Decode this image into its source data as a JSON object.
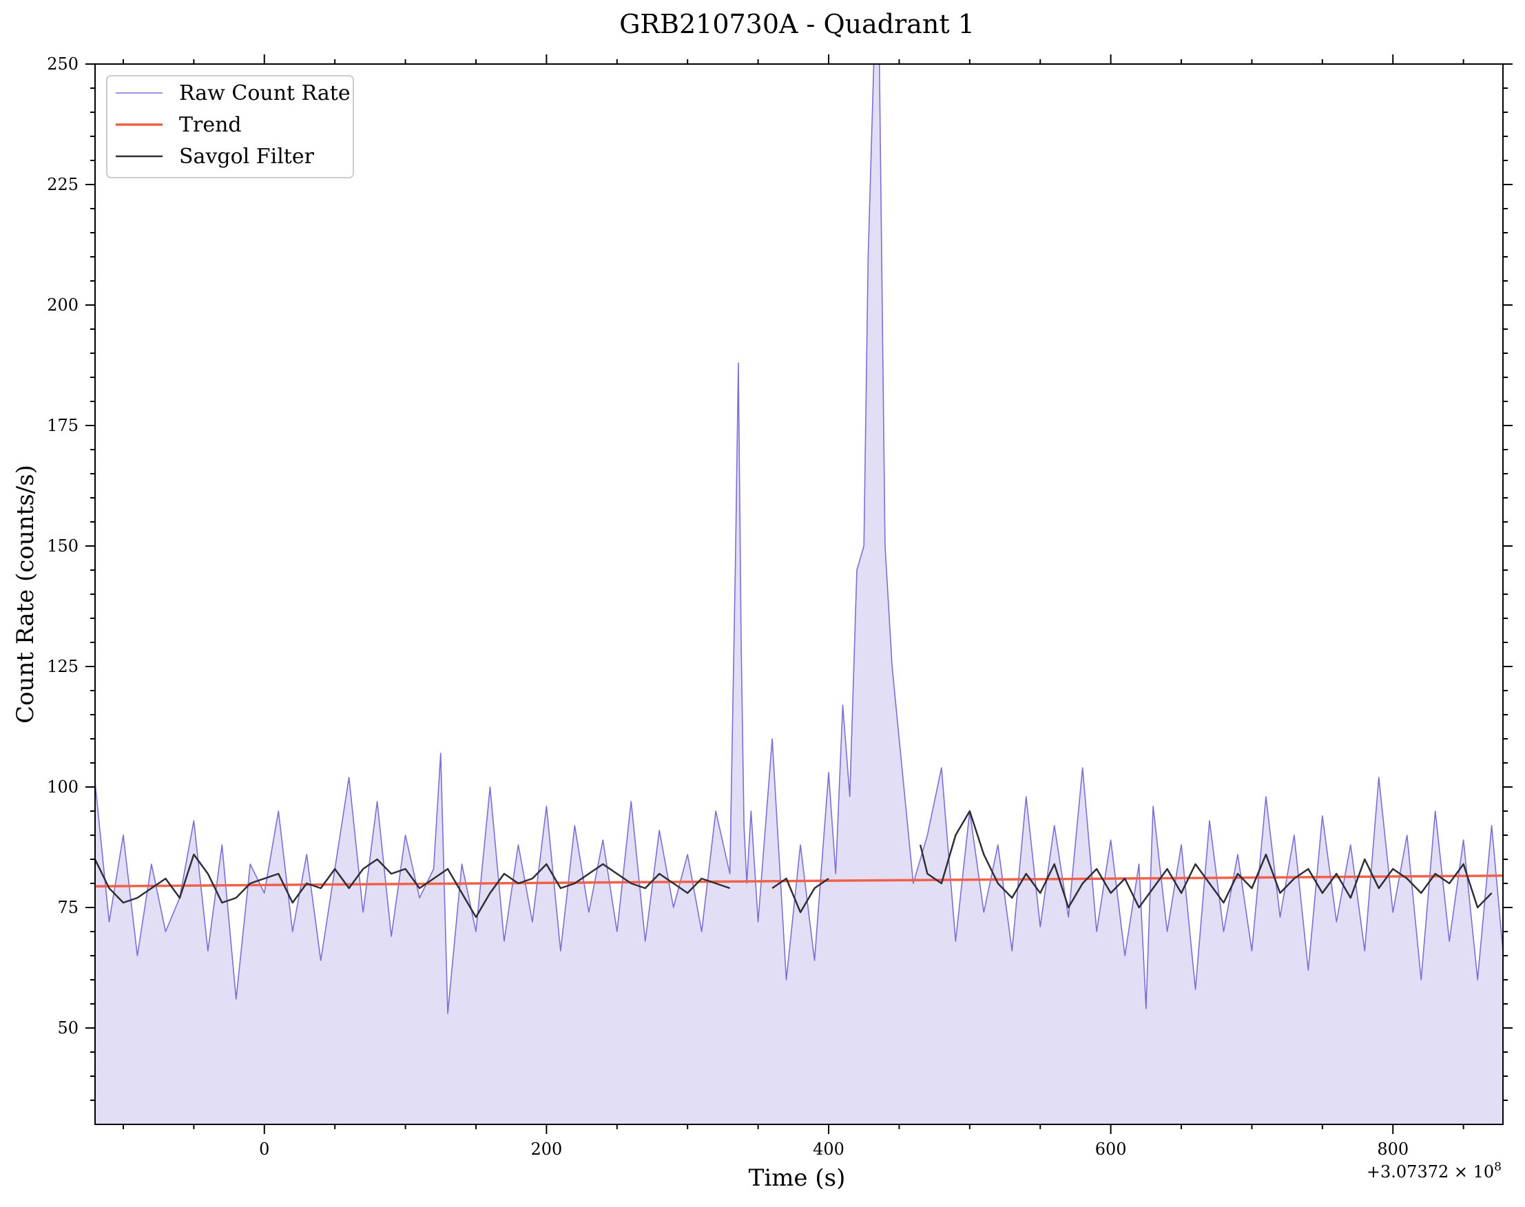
{
  "chart_data": {
    "type": "line",
    "title": "GRB210730A - Quadrant 1",
    "xlabel": "Time (s)",
    "ylabel": "Count Rate (counts/s)",
    "x_offset_label": "+3.07372 × 10",
    "x_offset_exponent": "8",
    "xlim": [
      -120,
      878
    ],
    "ylim": [
      30,
      250
    ],
    "x_ticks": [
      0,
      200,
      400,
      600,
      800
    ],
    "x_tick_labels": [
      "0",
      "200",
      "400",
      "600",
      "800"
    ],
    "y_ticks": [
      50,
      75,
      100,
      125,
      150,
      175,
      200,
      225,
      250
    ],
    "y_tick_labels": [
      "50",
      "75",
      "100",
      "125",
      "150",
      "175",
      "200",
      "225",
      "250"
    ],
    "grid": false,
    "legend_position": "top-left",
    "colors": {
      "raw": "#7b6fd6",
      "raw_fill": "#e1def5",
      "trend": "#f0604a",
      "savgol": "#2e2e36"
    },
    "series": [
      {
        "name": "Raw Count Rate",
        "style": "thin line with filled area",
        "x": [
          -120,
          -110,
          -100,
          -90,
          -80,
          -70,
          -60,
          -50,
          -40,
          -30,
          -20,
          -10,
          0,
          10,
          20,
          30,
          40,
          50,
          60,
          70,
          80,
          90,
          100,
          110,
          120,
          125,
          130,
          140,
          150,
          160,
          170,
          180,
          190,
          200,
          210,
          220,
          230,
          240,
          250,
          260,
          270,
          280,
          290,
          300,
          310,
          320,
          330,
          334,
          336,
          338,
          340,
          342,
          345,
          350,
          360,
          370,
          380,
          390,
          400,
          405,
          410,
          415,
          420,
          425,
          428,
          432,
          436,
          440,
          445,
          450,
          460,
          470,
          480,
          490,
          500,
          510,
          520,
          530,
          540,
          550,
          560,
          570,
          580,
          590,
          600,
          610,
          620,
          625,
          630,
          640,
          650,
          660,
          670,
          680,
          690,
          700,
          710,
          720,
          730,
          740,
          750,
          760,
          770,
          780,
          790,
          800,
          810,
          820,
          830,
          840,
          850,
          860,
          870,
          878
        ],
        "y": [
          101,
          72,
          90,
          65,
          84,
          70,
          77,
          93,
          66,
          88,
          56,
          84,
          78,
          95,
          70,
          86,
          64,
          83,
          102,
          74,
          97,
          69,
          90,
          77,
          83,
          107,
          53,
          84,
          70,
          100,
          68,
          88,
          72,
          96,
          66,
          92,
          74,
          89,
          70,
          97,
          68,
          91,
          75,
          86,
          70,
          95,
          82,
          148,
          188,
          130,
          92,
          80,
          95,
          72,
          110,
          60,
          88,
          64,
          103,
          82,
          117,
          98,
          145,
          150,
          210,
          250,
          250,
          150,
          125,
          110,
          80,
          90,
          104,
          68,
          95,
          74,
          88,
          66,
          98,
          71,
          92,
          73,
          104,
          70,
          89,
          65,
          84,
          54,
          96,
          70,
          88,
          58,
          93,
          70,
          86,
          66,
          98,
          73,
          90,
          62,
          94,
          72,
          88,
          66,
          102,
          74,
          90,
          60,
          95,
          68,
          89,
          60,
          92,
          66
        ]
      },
      {
        "name": "Trend",
        "x": [
          -120,
          878
        ],
        "y": [
          79.4,
          81.6
        ]
      },
      {
        "name": "Savgol Filter",
        "x": [
          -120,
          -110,
          -100,
          -90,
          -80,
          -70,
          -60,
          -50,
          -40,
          -30,
          -20,
          -10,
          0,
          10,
          20,
          30,
          40,
          50,
          60,
          70,
          80,
          90,
          100,
          110,
          120,
          130,
          140,
          150,
          160,
          170,
          180,
          190,
          200,
          210,
          220,
          230,
          240,
          250,
          260,
          270,
          280,
          290,
          300,
          310,
          320,
          330,
          345,
          350,
          null,
          360,
          370,
          380,
          390,
          400,
          null,
          465,
          470,
          480,
          490,
          500,
          510,
          520,
          530,
          540,
          550,
          560,
          570,
          580,
          590,
          600,
          610,
          620,
          630,
          640,
          650,
          660,
          670,
          680,
          690,
          700,
          710,
          720,
          730,
          740,
          750,
          760,
          770,
          780,
          790,
          800,
          810,
          820,
          830,
          840,
          850,
          860,
          870
        ],
        "y": [
          85,
          79,
          76,
          77,
          79,
          81,
          77,
          86,
          82,
          76,
          77,
          80,
          81,
          82,
          76,
          80,
          79,
          83,
          79,
          83,
          85,
          82,
          83,
          79,
          81,
          83,
          78,
          73,
          78,
          82,
          80,
          81,
          84,
          79,
          80,
          82,
          84,
          82,
          80,
          79,
          82,
          80,
          78,
          81,
          80,
          79,
          null,
          77,
          null,
          79,
          81,
          74,
          79,
          81,
          null,
          88,
          82,
          80,
          90,
          95,
          86,
          80,
          77,
          82,
          78,
          84,
          75,
          80,
          83,
          78,
          81,
          75,
          79,
          83,
          78,
          84,
          80,
          76,
          82,
          79,
          86,
          78,
          81,
          83,
          78,
          82,
          77,
          85,
          79,
          83,
          81,
          78,
          82,
          80,
          84,
          75,
          78
        ]
      }
    ]
  }
}
